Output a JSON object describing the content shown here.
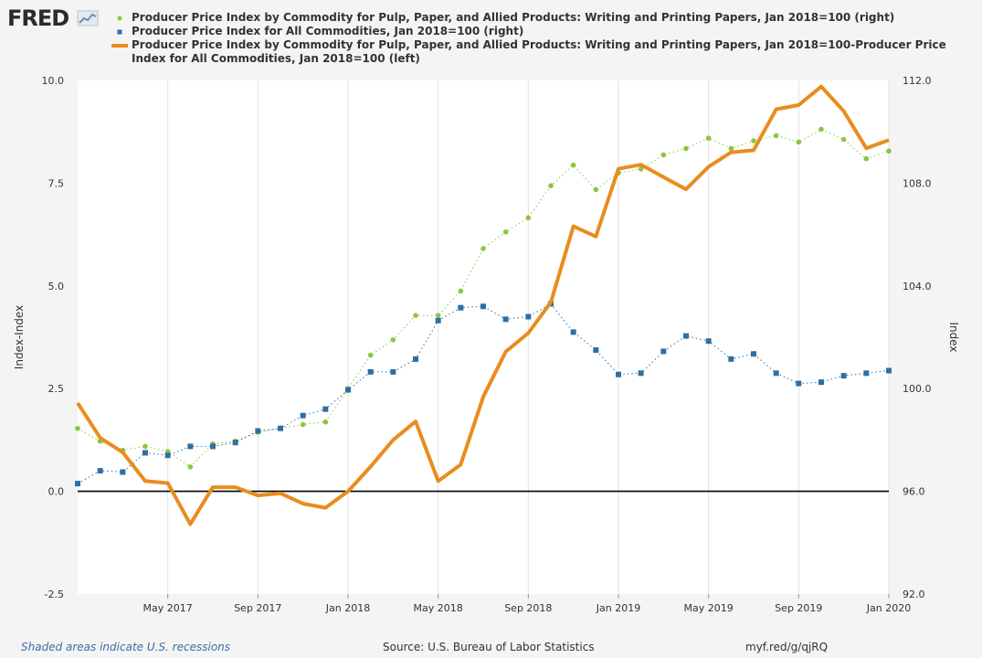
{
  "logo": {
    "text": "FRED",
    "icon": "chart-line-icon"
  },
  "footer": {
    "recession_note": "Shaded areas indicate U.S. recessions",
    "source": "Source: U.S. Bureau of Labor Statistics",
    "link": "myf.red/g/qjRQ"
  },
  "chart_data": {
    "type": "line",
    "x": [
      "Jan 2017",
      "Feb 2017",
      "Mar 2017",
      "Apr 2017",
      "May 2017",
      "Jun 2017",
      "Jul 2017",
      "Aug 2017",
      "Sep 2017",
      "Oct 2017",
      "Nov 2017",
      "Dec 2017",
      "Jan 2018",
      "Feb 2018",
      "Mar 2018",
      "Apr 2018",
      "May 2018",
      "Jun 2018",
      "Jul 2018",
      "Aug 2018",
      "Sep 2018",
      "Oct 2018",
      "Nov 2018",
      "Dec 2018",
      "Jan 2019",
      "Feb 2019",
      "Mar 2019",
      "Apr 2019",
      "May 2019",
      "Jun 2019",
      "Jul 2019",
      "Aug 2019",
      "Sep 2019",
      "Oct 2019",
      "Nov 2019",
      "Dec 2019",
      "Jan 2020"
    ],
    "x_ticks": [
      "May 2017",
      "Sep 2017",
      "Jan 2018",
      "May 2018",
      "Sep 2018",
      "Jan 2019",
      "May 2019",
      "Sep 2019",
      "Jan 2020"
    ],
    "y_left": {
      "label": "Index-Index",
      "range": [
        -2.5,
        10.0
      ],
      "ticks": [
        "-2.5",
        "0.0",
        "2.5",
        "5.0",
        "7.5",
        "10.0"
      ]
    },
    "y_right": {
      "label": "Index",
      "range": [
        92.0,
        112.0
      ],
      "ticks": [
        "92.0",
        "96.0",
        "100.0",
        "104.0",
        "108.0",
        "112.0"
      ]
    },
    "grid": "vertical",
    "series": [
      {
        "name": "Producer Price Index by Commodity for Pulp, Paper, and Allied Products: Writing and Printing Papers, Jan 2018=100 (right)",
        "axis": "right",
        "style": "dotted-circle",
        "color": "#8dc63f",
        "values": [
          98.45,
          97.95,
          97.6,
          97.75,
          97.55,
          96.95,
          97.85,
          97.95,
          98.3,
          98.45,
          98.6,
          98.7,
          100.0,
          101.3,
          101.9,
          102.85,
          102.85,
          103.8,
          105.45,
          106.1,
          106.65,
          107.9,
          108.7,
          107.75,
          108.4,
          108.55,
          109.1,
          109.35,
          109.75,
          109.35,
          109.65,
          109.85,
          109.6,
          110.1,
          109.7,
          108.95,
          109.25
        ]
      },
      {
        "name": "Producer Price Index for All Commodities, Jan 2018=100 (right)",
        "axis": "right",
        "style": "dotted-square",
        "color": "#2e6fa3",
        "values": [
          96.3,
          96.8,
          96.75,
          97.5,
          97.4,
          97.75,
          97.75,
          97.9,
          98.35,
          98.45,
          98.95,
          99.2,
          99.95,
          100.65,
          100.65,
          101.15,
          102.65,
          103.15,
          103.2,
          102.7,
          102.8,
          103.3,
          102.2,
          101.5,
          100.55,
          100.6,
          101.45,
          102.05,
          101.85,
          101.15,
          101.35,
          100.6,
          100.2,
          100.25,
          100.5,
          100.6,
          100.7
        ]
      },
      {
        "name": "Producer Price Index by Commodity for Pulp, Paper, and Allied Products: Writing and Printing Papers, Jan 2018=100-Producer Price Index for All Commodities, Jan 2018=100 (left)",
        "axis": "left",
        "style": "thick-line",
        "color": "#e98c1f",
        "values": [
          2.15,
          1.3,
          0.95,
          0.25,
          0.2,
          -0.8,
          0.1,
          0.1,
          -0.1,
          -0.05,
          -0.3,
          -0.4,
          0.0,
          0.6,
          1.25,
          1.7,
          0.25,
          0.65,
          2.3,
          3.4,
          3.85,
          4.6,
          6.45,
          6.2,
          7.85,
          7.95,
          7.65,
          7.35,
          7.9,
          8.25,
          8.3,
          9.3,
          9.4,
          9.85,
          9.25,
          8.35,
          8.55
        ]
      }
    ]
  }
}
